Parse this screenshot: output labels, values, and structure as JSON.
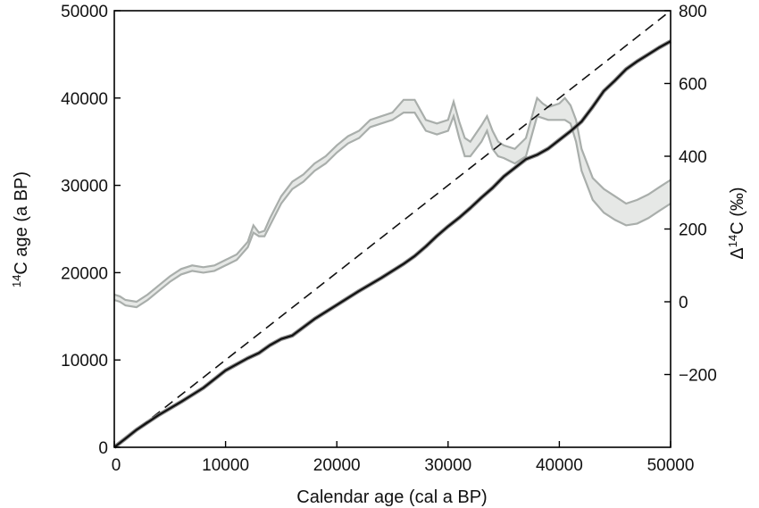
{
  "chart_data": {
    "type": "line",
    "title": "",
    "xlabel": "Calendar age (cal a BP)",
    "ylabel_left": {
      "prefix": "",
      "sup": "14",
      "main": "C age (a BP)"
    },
    "ylabel_right": {
      "prefix": "Δ",
      "sup": "14",
      "main": "C (‰)"
    },
    "xlim": [
      0,
      50000
    ],
    "ylim_left": [
      0,
      50000
    ],
    "ylim_right": [
      -400,
      800
    ],
    "x_ticks": [
      "0",
      "10000",
      "20000",
      "30000",
      "40000",
      "50000"
    ],
    "x_tick_values": [
      0,
      10000,
      20000,
      30000,
      40000,
      50000
    ],
    "y_left_ticks": [
      "0",
      "10000",
      "20000",
      "30000",
      "40000",
      "50000"
    ],
    "y_left_tick_values": [
      0,
      10000,
      20000,
      30000,
      40000,
      50000
    ],
    "y_right_ticks": [
      "−200",
      "0",
      "200",
      "400",
      "600",
      "800"
    ],
    "y_right_tick_values": [
      -200,
      0,
      200,
      400,
      600,
      800
    ],
    "grid": false,
    "colors": {
      "calibration": "#111111",
      "calibration_band": "#7a7a7a",
      "delta": "#a9aeab",
      "delta_fill": "#e6e8e6",
      "identity": "#111111"
    },
    "series": [
      {
        "key": "identity",
        "axis": "left",
        "style": "dashed",
        "x": [
          0,
          50000
        ],
        "y": [
          0,
          50000
        ]
      },
      {
        "key": "calibration",
        "axis": "left",
        "style": "solid",
        "x": [
          0,
          1000,
          2000,
          4000,
          6000,
          8000,
          10000,
          12000,
          13000,
          14000,
          15000,
          16000,
          18000,
          20000,
          22000,
          24000,
          26000,
          27000,
          28000,
          29000,
          30000,
          31000,
          32000,
          33000,
          34000,
          35000,
          36000,
          37000,
          38000,
          39000,
          40000,
          41000,
          42000,
          43000,
          44000,
          45000,
          46000,
          47000,
          48000,
          49000,
          50000
        ],
        "y": [
          0,
          1000,
          2000,
          3700,
          5200,
          6800,
          8800,
          10200,
          10800,
          11700,
          12400,
          12800,
          14700,
          16300,
          17900,
          19400,
          21000,
          21900,
          23000,
          24200,
          25300,
          26300,
          27400,
          28600,
          29700,
          31000,
          32000,
          33000,
          33500,
          34200,
          35200,
          36200,
          37300,
          39000,
          40800,
          42000,
          43300,
          44200,
          45000,
          45800,
          46500
        ]
      },
      {
        "key": "delta_upper",
        "axis": "right",
        "style": "solid",
        "x": [
          0,
          500,
          1000,
          2000,
          3000,
          4000,
          5000,
          6000,
          7000,
          8000,
          9000,
          10000,
          11000,
          12000,
          12500,
          13000,
          13500,
          14000,
          15000,
          16000,
          17000,
          18000,
          19000,
          20000,
          21000,
          22000,
          23000,
          24000,
          25000,
          26000,
          27000,
          28000,
          29000,
          30000,
          30500,
          31000,
          31500,
          32000,
          33000,
          33500,
          34000,
          34500,
          35000,
          36000,
          37000,
          38000,
          38500,
          39000,
          40000,
          40500,
          41000,
          41500,
          42000,
          43000,
          44000,
          45000,
          46000,
          47000,
          48000,
          49000,
          50000
        ],
        "y": [
          20,
          15,
          5,
          0,
          20,
          45,
          70,
          90,
          100,
          95,
          100,
          115,
          130,
          165,
          210,
          190,
          195,
          230,
          290,
          330,
          350,
          380,
          400,
          430,
          455,
          470,
          500,
          510,
          520,
          555,
          555,
          500,
          490,
          500,
          550,
          495,
          450,
          440,
          485,
          510,
          470,
          440,
          430,
          420,
          450,
          560,
          545,
          535,
          545,
          560,
          540,
          500,
          420,
          340,
          310,
          290,
          270,
          280,
          295,
          315,
          335
        ]
      },
      {
        "key": "delta_lower",
        "axis": "right",
        "style": "solid",
        "x": [
          0,
          500,
          1000,
          2000,
          3000,
          4000,
          5000,
          6000,
          7000,
          8000,
          9000,
          10000,
          11000,
          12000,
          12500,
          13000,
          13500,
          14000,
          15000,
          16000,
          17000,
          18000,
          19000,
          20000,
          21000,
          22000,
          23000,
          24000,
          25000,
          26000,
          27000,
          28000,
          29000,
          30000,
          30500,
          31000,
          31500,
          32000,
          33000,
          33500,
          34000,
          34500,
          35000,
          36000,
          37000,
          38000,
          38500,
          39000,
          40000,
          40500,
          41000,
          41500,
          42000,
          43000,
          44000,
          45000,
          46000,
          47000,
          48000,
          49000,
          50000
        ],
        "y": [
          5,
          0,
          -10,
          -15,
          5,
          30,
          55,
          75,
          85,
          80,
          85,
          100,
          115,
          150,
          190,
          180,
          180,
          210,
          270,
          310,
          330,
          360,
          380,
          410,
          435,
          450,
          480,
          490,
          500,
          520,
          520,
          470,
          460,
          470,
          510,
          450,
          400,
          400,
          440,
          470,
          420,
          400,
          395,
          380,
          400,
          510,
          505,
          500,
          500,
          500,
          490,
          440,
          360,
          280,
          245,
          225,
          210,
          215,
          230,
          250,
          270
        ]
      }
    ]
  }
}
